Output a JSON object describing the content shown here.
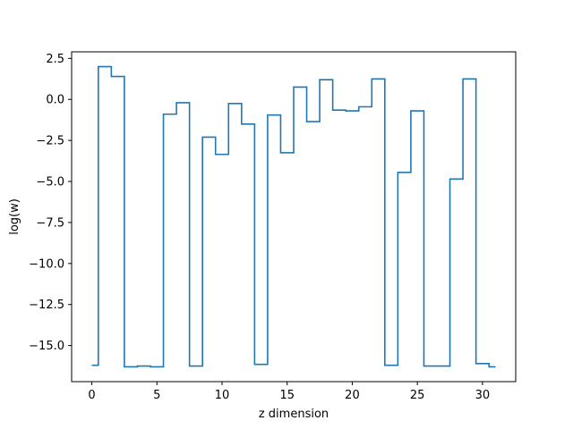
{
  "chart_data": {
    "type": "line",
    "drawstyle": "steps-mid",
    "title": "",
    "xlabel": "z dimension",
    "ylabel": "log(w)",
    "xlim": [
      -1.55,
      32.55
    ],
    "ylim": [
      -17.2,
      2.9
    ],
    "grid": false,
    "legend": "none",
    "series_color": "#1f77b4",
    "x": [
      0,
      1,
      2,
      3,
      4,
      5,
      6,
      7,
      8,
      9,
      10,
      11,
      12,
      13,
      14,
      15,
      16,
      17,
      18,
      19,
      20,
      21,
      22,
      23,
      24,
      25,
      26,
      27,
      28,
      29,
      30,
      31
    ],
    "y": [
      -16.2,
      2.0,
      1.4,
      -16.3,
      -16.25,
      -16.3,
      -0.9,
      -0.2,
      -16.25,
      -2.3,
      -3.35,
      -0.25,
      -1.5,
      -16.15,
      -0.95,
      -3.25,
      0.75,
      -1.35,
      1.2,
      -0.65,
      -0.7,
      -0.45,
      1.25,
      -16.2,
      -4.45,
      -0.7,
      -16.25,
      -16.25,
      -4.85,
      1.25,
      -16.1,
      -16.3
    ],
    "xticks": [
      0,
      5,
      10,
      15,
      20,
      25,
      30
    ],
    "xtick_labels": [
      "0",
      "5",
      "10",
      "15",
      "20",
      "25",
      "30"
    ],
    "yticks": [
      2.5,
      0.0,
      -2.5,
      -5.0,
      -7.5,
      -10.0,
      -12.5,
      -15.0
    ],
    "ytick_labels": [
      "2.5",
      "0.0",
      "−2.5",
      "−5.0",
      "−7.5",
      "−10.0",
      "−12.5",
      "−15.0"
    ]
  }
}
